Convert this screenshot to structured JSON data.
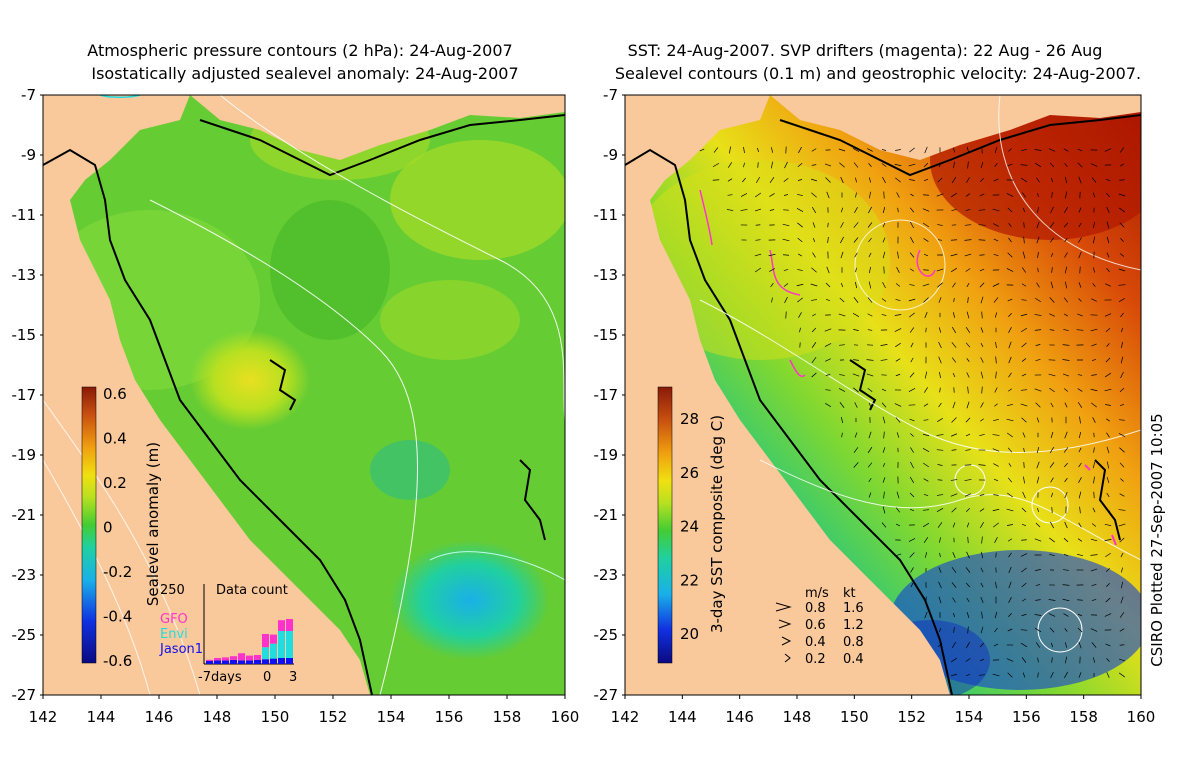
{
  "left_panel": {
    "title_line1": "Atmospheric pressure contours (2 hPa): 24-Aug-2007",
    "title_line2": "Isostatically adjusted sealevel anomaly: 24-Aug-2007",
    "colorbar": {
      "label": "Sealevel anomaly (m)",
      "ticks": [
        "0.6",
        "0.4",
        "0.2",
        "0",
        "-0.2",
        "-0.4",
        "-0.6"
      ]
    },
    "data_count": {
      "title": "Data count",
      "max_label": "250",
      "x_labels": [
        "-7days",
        "0",
        "3"
      ],
      "legend": [
        {
          "name": "GFO",
          "color": "#ff33cc"
        },
        {
          "name": "Envi",
          "color": "#22dddd"
        },
        {
          "name": "Jason1",
          "color": "#1010ee"
        }
      ],
      "days": [
        -7,
        -6,
        -5,
        -4,
        -3,
        -2,
        -1,
        0,
        1,
        2,
        3
      ],
      "jason1": [
        0.05,
        0.06,
        0.06,
        0.07,
        0.06,
        0.06,
        0.07,
        0.08,
        0.09,
        0.1,
        0.1
      ],
      "envi": [
        0.0,
        0.0,
        0.0,
        0.0,
        0.0,
        0.0,
        0.0,
        0.2,
        0.25,
        0.45,
        0.45
      ],
      "gfo": [
        0.02,
        0.04,
        0.05,
        0.06,
        0.12,
        0.08,
        0.08,
        0.22,
        0.15,
        0.18,
        0.2
      ]
    }
  },
  "right_panel": {
    "title_line1": "SST: 24-Aug-2007. SVP drifters (magenta): 22 Aug - 26 Aug",
    "title_line2": "Sealevel contours (0.1 m) and geostrophic velocity: 24-Aug-2007.",
    "colorbar": {
      "label": "3-day SST composite (deg C)",
      "ticks": [
        "28",
        "26",
        "24",
        "22",
        "20"
      ]
    },
    "velocity_legend": {
      "header_ms": "m/s",
      "header_kt": "kt",
      "rows": [
        {
          "ms": "0.8",
          "kt": "1.6"
        },
        {
          "ms": "0.6",
          "kt": "1.2"
        },
        {
          "ms": "0.4",
          "kt": "0.8"
        },
        {
          "ms": "0.2",
          "kt": "0.4"
        }
      ]
    }
  },
  "axes": {
    "lat_ticks": [
      "-7",
      "-9",
      "-11",
      "-13",
      "-15",
      "-17",
      "-19",
      "-21",
      "-23",
      "-25",
      "-27"
    ],
    "lon_ticks": [
      "142",
      "144",
      "146",
      "148",
      "150",
      "152",
      "154",
      "156",
      "158",
      "160"
    ]
  },
  "credit": "CSIRO Plotted 27-Sep-2007 10:05",
  "colors": {
    "land": "#f9c89b",
    "sla_background": "#66cc33",
    "sst_warm": "#c21a00",
    "sst_cool": "#0b2ea6"
  }
}
